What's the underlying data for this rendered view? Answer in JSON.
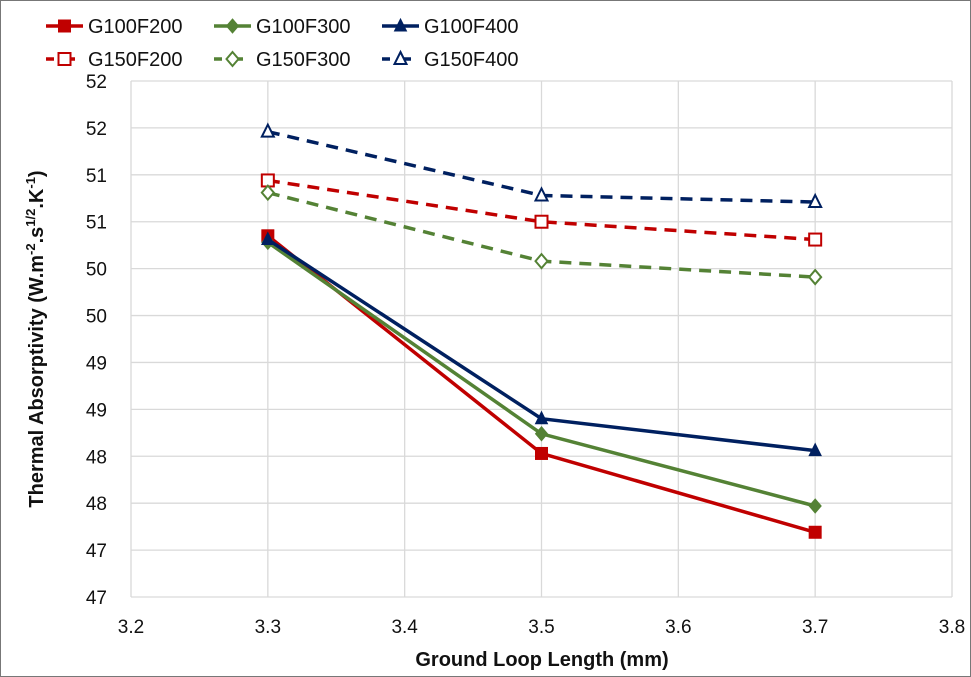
{
  "chart_data": {
    "type": "line",
    "title": "",
    "xlabel": "Ground Loop Length (mm)",
    "ylabel_parts": [
      "Thermal Absorptivity (W.m",
      "-2",
      ".s",
      "1/2",
      ".K",
      "-1",
      ")"
    ],
    "xlim": [
      3.2,
      3.8
    ],
    "ylim": [
      46.5,
      52.0
    ],
    "x_ticks": [
      3.2,
      3.3,
      3.4,
      3.5,
      3.6,
      3.7,
      3.8
    ],
    "x_tick_labels": [
      "3.2",
      "3.3",
      "3.4",
      "3.5",
      "3.6",
      "3.7",
      "3.8"
    ],
    "y_ticks": [
      46.5,
      47,
      47.5,
      48,
      48.5,
      49,
      49.5,
      50,
      50.5,
      51,
      51.5,
      52
    ],
    "y_tick_labels": [
      "47",
      "47",
      "48",
      "48",
      "49",
      "49",
      "50",
      "50",
      "51",
      "51",
      "52",
      "52"
    ],
    "grid": true,
    "legend_position": "top",
    "x": [
      3.3,
      3.5,
      3.7
    ],
    "series": [
      {
        "name": "G100F200",
        "values": [
          50.35,
          48.03,
          47.19
        ],
        "color": "#C00000",
        "dashed": false,
        "marker": "square"
      },
      {
        "name": "G100F300",
        "values": [
          50.28,
          48.24,
          47.47
        ],
        "color": "#548235",
        "dashed": false,
        "marker": "diamond"
      },
      {
        "name": "G100F400",
        "values": [
          50.31,
          48.4,
          48.06
        ],
        "color": "#002060",
        "dashed": false,
        "marker": "triangle"
      },
      {
        "name": "G150F200",
        "values": [
          50.94,
          50.5,
          50.31
        ],
        "color": "#C00000",
        "dashed": true,
        "marker": "square"
      },
      {
        "name": "G150F300",
        "values": [
          50.81,
          50.08,
          49.91
        ],
        "color": "#548235",
        "dashed": true,
        "marker": "diamond"
      },
      {
        "name": "G150F400",
        "values": [
          51.46,
          50.78,
          50.71
        ],
        "color": "#002060",
        "dashed": true,
        "marker": "triangle"
      }
    ]
  }
}
